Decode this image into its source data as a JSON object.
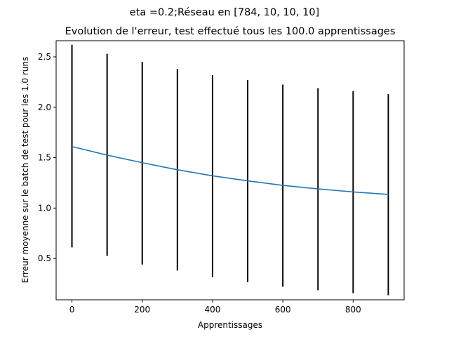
{
  "figure": {
    "suptitle": "eta =0.2;Réseau en [784, 10, 10, 10]"
  },
  "chart_data": {
    "type": "line",
    "title": "Evolution de l'erreur, test effectué tous les 100.0 apprentissages",
    "xlabel": "Apprentissages",
    "ylabel": "Erreur moyenne sur le batch de test pour les 1.0 runs",
    "xlim": [
      -45,
      945
    ],
    "ylim": [
      0.09,
      2.66
    ],
    "xticks": [
      0,
      200,
      400,
      600,
      800
    ],
    "xtick_labels": [
      "0",
      "200",
      "400",
      "600",
      "800"
    ],
    "yticks": [
      0.5,
      1.0,
      1.5,
      2.0,
      2.5
    ],
    "ytick_labels": [
      "0.5",
      "1.0",
      "1.5",
      "2.0",
      "2.5"
    ],
    "grid": false,
    "x": [
      0,
      100,
      200,
      300,
      400,
      500,
      600,
      700,
      800,
      900
    ],
    "series": [
      {
        "values": [
          1.61,
          1.525,
          1.45,
          1.38,
          1.32,
          1.27,
          1.225,
          1.19,
          1.16,
          1.135
        ],
        "error_low": [
          0.61,
          0.525,
          0.44,
          0.38,
          0.315,
          0.265,
          0.22,
          0.185,
          0.155,
          0.135
        ],
        "error_high": [
          2.62,
          2.53,
          2.45,
          2.38,
          2.32,
          2.27,
          2.225,
          2.19,
          2.16,
          2.13
        ],
        "color": "#1f77b4",
        "error_color": "#000000"
      }
    ]
  }
}
